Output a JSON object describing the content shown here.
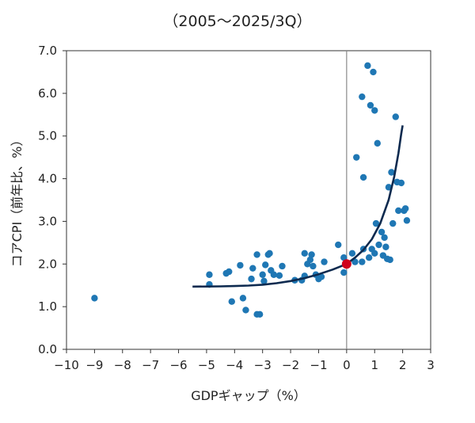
{
  "chart_data": {
    "type": "scatter",
    "title": "（2005～2025/3Q）",
    "xlabel": "GDPギャップ（%）",
    "ylabel": "コアCPI（前年比、%）",
    "xlim": [
      -10,
      3
    ],
    "ylim": [
      0,
      7
    ],
    "xticks": [
      -10,
      -9,
      -8,
      -7,
      -6,
      -5,
      -4,
      -3,
      -2,
      -1,
      0,
      1,
      2,
      3
    ],
    "xtick_labels": [
      "−10",
      "−9",
      "−8",
      "−7",
      "−6",
      "−5",
      "−4",
      "−3",
      "−2",
      "−1",
      "0",
      "1",
      "2",
      "3"
    ],
    "yticks": [
      0,
      1,
      2,
      3,
      4,
      5,
      6,
      7
    ],
    "ytick_labels": [
      "0.0",
      "1.0",
      "2.0",
      "3.0",
      "4.0",
      "5.0",
      "6.0",
      "7.0"
    ],
    "grid": false,
    "colors": {
      "points": "#1f77b4",
      "curve": "#0d2a4f",
      "highlight": "#d0021b",
      "zero_line": "#888888",
      "frame": "#333333"
    },
    "points": [
      [
        -9.0,
        1.2
      ],
      [
        -4.9,
        1.75
      ],
      [
        -4.9,
        1.52
      ],
      [
        -4.3,
        1.78
      ],
      [
        -4.2,
        1.82
      ],
      [
        -4.1,
        1.12
      ],
      [
        -3.8,
        1.97
      ],
      [
        -3.7,
        1.2
      ],
      [
        -3.6,
        0.92
      ],
      [
        -3.4,
        1.65
      ],
      [
        -3.35,
        1.9
      ],
      [
        -3.2,
        2.22
      ],
      [
        -3.2,
        0.82
      ],
      [
        -3.1,
        0.82
      ],
      [
        -3.0,
        1.75
      ],
      [
        -2.95,
        1.6
      ],
      [
        -2.9,
        1.98
      ],
      [
        -2.8,
        2.22
      ],
      [
        -2.75,
        2.25
      ],
      [
        -2.7,
        1.85
      ],
      [
        -2.6,
        1.75
      ],
      [
        -2.4,
        1.73
      ],
      [
        -2.3,
        1.95
      ],
      [
        -1.85,
        1.62
      ],
      [
        -1.6,
        1.62
      ],
      [
        -1.5,
        2.25
      ],
      [
        -1.5,
        1.72
      ],
      [
        -1.4,
        2.0
      ],
      [
        -1.3,
        2.1
      ],
      [
        -1.25,
        2.22
      ],
      [
        -1.2,
        1.95
      ],
      [
        -1.1,
        1.75
      ],
      [
        -1.0,
        1.65
      ],
      [
        -0.9,
        1.7
      ],
      [
        -0.8,
        2.05
      ],
      [
        -0.3,
        2.45
      ],
      [
        -0.1,
        2.15
      ],
      [
        -0.1,
        1.8
      ],
      [
        0.2,
        2.25
      ],
      [
        0.3,
        2.05
      ],
      [
        0.35,
        4.5
      ],
      [
        0.55,
        5.92
      ],
      [
        0.6,
        4.03
      ],
      [
        0.6,
        2.35
      ],
      [
        0.55,
        2.05
      ],
      [
        0.75,
        6.65
      ],
      [
        0.8,
        2.15
      ],
      [
        0.85,
        5.72
      ],
      [
        0.9,
        2.35
      ],
      [
        0.95,
        6.5
      ],
      [
        1.0,
        5.6
      ],
      [
        1.0,
        2.25
      ],
      [
        1.05,
        2.95
      ],
      [
        1.1,
        4.83
      ],
      [
        1.15,
        2.45
      ],
      [
        1.25,
        2.75
      ],
      [
        1.3,
        2.2
      ],
      [
        1.35,
        2.62
      ],
      [
        1.4,
        2.4
      ],
      [
        1.45,
        2.12
      ],
      [
        1.5,
        3.8
      ],
      [
        1.55,
        2.1
      ],
      [
        1.6,
        4.15
      ],
      [
        1.65,
        2.95
      ],
      [
        1.75,
        5.45
      ],
      [
        1.8,
        3.92
      ],
      [
        1.85,
        3.25
      ],
      [
        1.95,
        3.9
      ],
      [
        2.05,
        3.25
      ],
      [
        2.1,
        3.3
      ],
      [
        2.15,
        3.02
      ]
    ],
    "highlight_point": [
      0,
      2.0
    ],
    "fit_curve": [
      [
        -5.5,
        1.47
      ],
      [
        -5.0,
        1.472
      ],
      [
        -4.5,
        1.476
      ],
      [
        -4.0,
        1.483
      ],
      [
        -3.5,
        1.495
      ],
      [
        -3.0,
        1.515
      ],
      [
        -2.5,
        1.55
      ],
      [
        -2.0,
        1.6
      ],
      [
        -1.5,
        1.67
      ],
      [
        -1.0,
        1.76
      ],
      [
        -0.5,
        1.87
      ],
      [
        0.0,
        2.0
      ],
      [
        0.3,
        2.15
      ],
      [
        0.6,
        2.33
      ],
      [
        0.9,
        2.58
      ],
      [
        1.2,
        2.95
      ],
      [
        1.5,
        3.5
      ],
      [
        1.7,
        4.05
      ],
      [
        1.85,
        4.6
      ],
      [
        1.95,
        5.05
      ],
      [
        2.0,
        5.25
      ]
    ]
  }
}
